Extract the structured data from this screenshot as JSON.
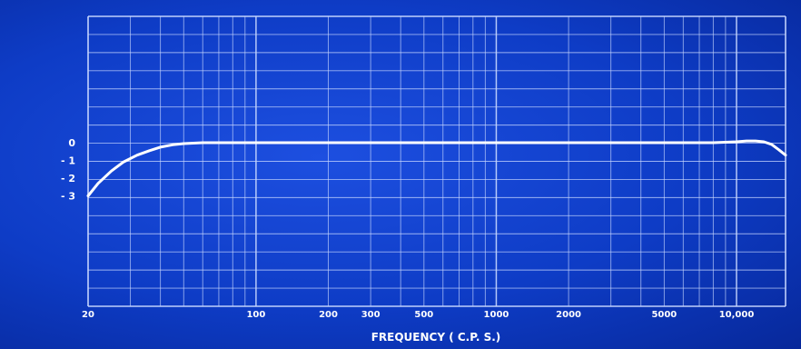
{
  "chart_data": {
    "type": "line",
    "title": "",
    "xlabel": "FREQUENCY ( C.P. S.)",
    "ylabel": "",
    "x_scale": "log",
    "xlim": [
      20,
      16000
    ],
    "x_ticks": [
      {
        "value": 20,
        "label": "20"
      },
      {
        "value": 100,
        "label": "100"
      },
      {
        "value": 200,
        "label": "200"
      },
      {
        "value": 300,
        "label": "300"
      },
      {
        "value": 500,
        "label": "500"
      },
      {
        "value": 1000,
        "label": "1000"
      },
      {
        "value": 2000,
        "label": "2000"
      },
      {
        "value": 5000,
        "label": "5000"
      },
      {
        "value": 10000,
        "label": "10,000"
      }
    ],
    "y_ticks": [
      {
        "value": 0,
        "label": "0"
      },
      {
        "value": -1,
        "label": "- 1"
      },
      {
        "value": -2,
        "label": "- 2"
      },
      {
        "value": -3,
        "label": "- 3"
      }
    ],
    "grid": true,
    "colors": {
      "background": "#0e3cc6",
      "grid": "#c9d8ff",
      "curve": "#ffffff",
      "text": "#ffffff"
    },
    "series": [
      {
        "x": [
          20,
          22,
          25,
          28,
          32,
          36,
          40,
          45,
          50,
          60,
          80,
          100,
          200,
          500,
          1000,
          2000,
          5000,
          8000,
          10000,
          11000,
          12000,
          13000,
          14000,
          15000,
          16000
        ],
        "values": [
          -3.0,
          -2.3,
          -1.6,
          -1.1,
          -0.7,
          -0.45,
          -0.25,
          -0.12,
          -0.05,
          0,
          0,
          0,
          0,
          0,
          0,
          0,
          0,
          0,
          0.05,
          0.1,
          0.1,
          0.05,
          -0.1,
          -0.4,
          -0.7
        ]
      }
    ]
  }
}
